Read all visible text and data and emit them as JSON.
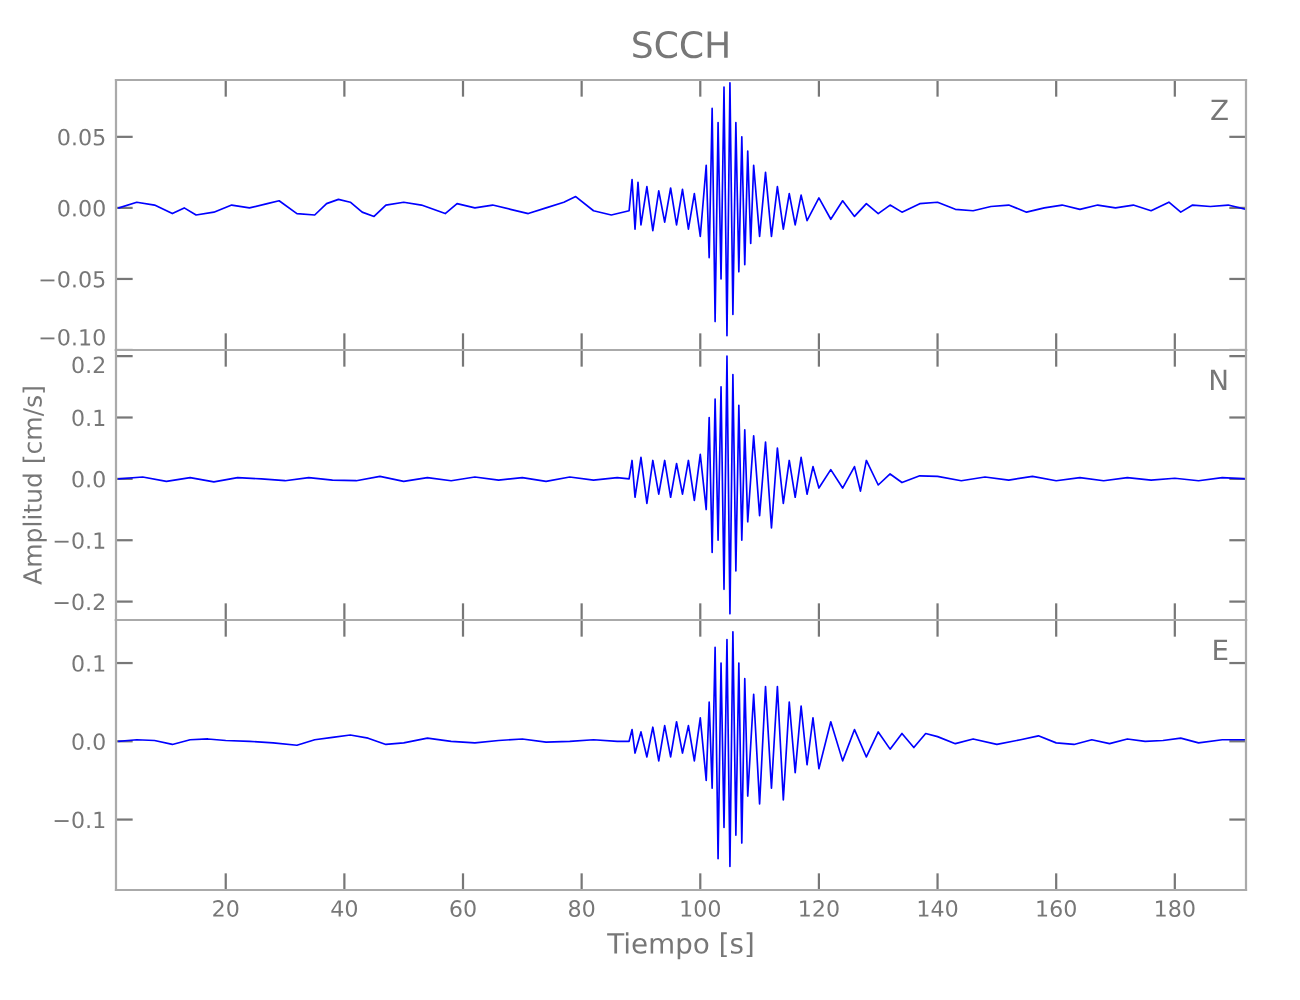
{
  "chart_data": [
    {
      "type": "line",
      "title": "SCCH",
      "annotations": [
        "Z"
      ],
      "tick_labels": "y",
      "xlim": [
        1.5,
        192
      ],
      "xticks": [
        20,
        40,
        60,
        80,
        100,
        120,
        140,
        160,
        180
      ],
      "ylim": [
        -0.1,
        0.09
      ],
      "yticks": [
        {
          "value": 0.05,
          "label": "0.05"
        },
        {
          "value": 0.0,
          "label": "0.00"
        },
        {
          "value": -0.05,
          "label": "−0.05"
        },
        {
          "value": -0.1,
          "label": "−0.10"
        }
      ],
      "series": [
        {
          "color": "#0000ff",
          "x": [
            2,
            5,
            8,
            11,
            13,
            15,
            18,
            21,
            24,
            27,
            29,
            32,
            35,
            37,
            39,
            41,
            43,
            45,
            47,
            50,
            53,
            57,
            59,
            62,
            65,
            68,
            71,
            74,
            77,
            79,
            82,
            85,
            88,
            88.5,
            89,
            89.5,
            90,
            91,
            92,
            93,
            94,
            95,
            96,
            97,
            98,
            99,
            100,
            101,
            101.5,
            102,
            102.5,
            103,
            103.5,
            104,
            104.5,
            105,
            105.5,
            106,
            106.5,
            107,
            107.5,
            108,
            108.5,
            109,
            110,
            111,
            112,
            113,
            114,
            115,
            116,
            117,
            118,
            120,
            122,
            124,
            126,
            128,
            130,
            132,
            134,
            137,
            140,
            143,
            146,
            149,
            152,
            155,
            158,
            161,
            164,
            167,
            170,
            173,
            176,
            179,
            181,
            183,
            186,
            189,
            192
          ],
          "values": [
            0.0,
            0.004,
            0.002,
            -0.004,
            0.0,
            -0.005,
            -0.003,
            0.002,
            0.0,
            0.003,
            0.005,
            -0.004,
            -0.005,
            0.003,
            0.006,
            0.004,
            -0.003,
            -0.006,
            0.002,
            0.004,
            0.002,
            -0.004,
            0.003,
            0.0,
            0.002,
            -0.001,
            -0.004,
            0.0,
            0.004,
            0.008,
            -0.002,
            -0.005,
            -0.002,
            0.02,
            -0.015,
            0.018,
            -0.012,
            0.015,
            -0.016,
            0.012,
            -0.01,
            0.014,
            -0.012,
            0.013,
            -0.015,
            0.01,
            -0.02,
            0.03,
            -0.035,
            0.07,
            -0.08,
            0.06,
            -0.05,
            0.085,
            -0.09,
            0.088,
            -0.075,
            0.06,
            -0.045,
            0.05,
            -0.04,
            0.04,
            -0.025,
            0.03,
            -0.02,
            0.025,
            -0.02,
            0.015,
            -0.015,
            0.01,
            -0.012,
            0.009,
            -0.009,
            0.007,
            -0.008,
            0.005,
            -0.006,
            0.003,
            -0.004,
            0.002,
            -0.003,
            0.003,
            0.004,
            -0.001,
            -0.002,
            0.001,
            0.002,
            -0.003,
            0.0,
            0.002,
            -0.001,
            0.002,
            0.0,
            0.002,
            -0.002,
            0.004,
            -0.003,
            0.002,
            0.001,
            0.002,
            -0.001
          ]
        }
      ]
    },
    {
      "type": "line",
      "annotations": [
        "N"
      ],
      "ylabel": "Amplitud [cm/s]",
      "tick_labels": "y",
      "xlim": [
        1.5,
        192
      ],
      "xticks": [
        20,
        40,
        60,
        80,
        100,
        120,
        140,
        160,
        180
      ],
      "ylim": [
        -0.23,
        0.21
      ],
      "yticks": [
        {
          "value": 0.2,
          "label": "0.2"
        },
        {
          "value": 0.1,
          "label": "0.1"
        },
        {
          "value": 0.0,
          "label": "0.0"
        },
        {
          "value": -0.1,
          "label": "−0.1"
        },
        {
          "value": -0.2,
          "label": "−0.2"
        }
      ],
      "series": [
        {
          "color": "#0000ff",
          "x": [
            2,
            6,
            10,
            14,
            18,
            22,
            26,
            30,
            34,
            38,
            42,
            46,
            50,
            54,
            58,
            62,
            66,
            70,
            74,
            78,
            82,
            86,
            88,
            88.5,
            89,
            90,
            91,
            92,
            93,
            94,
            95,
            96,
            97,
            98,
            99,
            100,
            101,
            101.5,
            102,
            102.5,
            103,
            103.5,
            104,
            104.5,
            105,
            105.5,
            106,
            106.5,
            107,
            107.5,
            108,
            109,
            110,
            111,
            112,
            113,
            114,
            115,
            116,
            117,
            118,
            119,
            120,
            122,
            124,
            126,
            127,
            128,
            130,
            132,
            134,
            137,
            140,
            144,
            148,
            152,
            156,
            160,
            164,
            168,
            172,
            176,
            180,
            184,
            188,
            192
          ],
          "values": [
            0.0,
            0.003,
            -0.004,
            0.002,
            -0.005,
            0.002,
            0.0,
            -0.003,
            0.002,
            -0.002,
            -0.003,
            0.004,
            -0.004,
            0.002,
            -0.003,
            0.003,
            -0.002,
            0.002,
            -0.004,
            0.003,
            -0.002,
            0.002,
            0.0,
            0.03,
            -0.03,
            0.035,
            -0.04,
            0.03,
            -0.025,
            0.03,
            -0.03,
            0.025,
            -0.025,
            0.03,
            -0.035,
            0.04,
            -0.05,
            0.1,
            -0.12,
            0.13,
            -0.1,
            0.15,
            -0.18,
            0.2,
            -0.22,
            0.17,
            -0.15,
            0.12,
            -0.1,
            0.08,
            -0.07,
            0.07,
            -0.06,
            0.06,
            -0.08,
            0.05,
            -0.04,
            0.03,
            -0.03,
            0.035,
            -0.025,
            0.02,
            -0.015,
            0.015,
            -0.015,
            0.02,
            -0.02,
            0.03,
            -0.01,
            0.008,
            -0.006,
            0.005,
            0.004,
            -0.003,
            0.003,
            -0.002,
            0.004,
            -0.003,
            0.002,
            -0.003,
            0.002,
            -0.002,
            0.001,
            -0.003,
            0.002,
            0.0
          ]
        }
      ]
    },
    {
      "type": "line",
      "annotations": [
        "E"
      ],
      "xlabel": "Tiempo [s]",
      "xlim": [
        1.5,
        192
      ],
      "xticks": [
        20,
        40,
        60,
        80,
        100,
        120,
        140,
        160,
        180
      ],
      "ylim": [
        -0.19,
        0.155
      ],
      "yticks": [
        {
          "value": 0.1,
          "label": "0.1"
        },
        {
          "value": 0.0,
          "label": "0.0"
        },
        {
          "value": -0.1,
          "label": "−0.1"
        }
      ],
      "series": [
        {
          "color": "#0000ff",
          "x": [
            2,
            5,
            8,
            11,
            14,
            17,
            20,
            24,
            28,
            32,
            35,
            38,
            41,
            44,
            47,
            50,
            54,
            58,
            62,
            66,
            70,
            74,
            78,
            82,
            86,
            88,
            88.5,
            89,
            90,
            91,
            92,
            93,
            94,
            95,
            96,
            97,
            98,
            99,
            100,
            101,
            101.5,
            102,
            102.5,
            103,
            103.5,
            104,
            104.5,
            105,
            105.5,
            106,
            106.5,
            107,
            107.5,
            108,
            109,
            110,
            111,
            112,
            113,
            114,
            115,
            116,
            117,
            118,
            119,
            120,
            122,
            124,
            126,
            128,
            130,
            132,
            134,
            136,
            138,
            140,
            143,
            146,
            150,
            154,
            157,
            160,
            163,
            166,
            169,
            172,
            175,
            178,
            181,
            184,
            188,
            192
          ],
          "values": [
            0.0,
            0.002,
            0.001,
            -0.004,
            0.002,
            0.003,
            0.001,
            0.0,
            -0.002,
            -0.005,
            0.002,
            0.005,
            0.008,
            0.004,
            -0.004,
            -0.002,
            0.004,
            0.0,
            -0.002,
            0.001,
            0.003,
            -0.001,
            0.0,
            0.002,
            0.0,
            0.0,
            0.015,
            -0.015,
            0.012,
            -0.02,
            0.018,
            -0.025,
            0.02,
            -0.02,
            0.025,
            -0.015,
            0.02,
            -0.025,
            0.03,
            -0.05,
            0.05,
            -0.06,
            0.12,
            -0.15,
            0.1,
            -0.11,
            0.13,
            -0.16,
            0.14,
            -0.12,
            0.1,
            -0.13,
            0.08,
            -0.07,
            0.06,
            -0.08,
            0.07,
            -0.06,
            0.07,
            -0.075,
            0.05,
            -0.04,
            0.045,
            -0.03,
            0.03,
            -0.035,
            0.025,
            -0.025,
            0.015,
            -0.02,
            0.012,
            -0.01,
            0.01,
            -0.008,
            0.01,
            0.006,
            -0.003,
            0.003,
            -0.004,
            0.002,
            0.007,
            -0.002,
            -0.004,
            0.002,
            -0.003,
            0.003,
            0.0,
            0.001,
            0.004,
            -0.002,
            0.002,
            0.002
          ]
        }
      ]
    }
  ]
}
